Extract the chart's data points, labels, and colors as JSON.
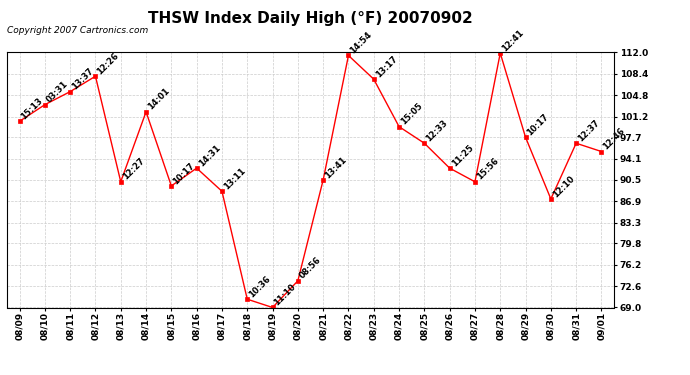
{
  "title": "THSW Index Daily High (°F) 20070902",
  "copyright": "Copyright 2007 Cartronics.com",
  "x_labels": [
    "08/09",
    "08/10",
    "08/11",
    "08/12",
    "08/13",
    "08/14",
    "08/15",
    "08/16",
    "08/17",
    "08/18",
    "08/19",
    "08/20",
    "08/21",
    "08/22",
    "08/23",
    "08/24",
    "08/25",
    "08/26",
    "08/27",
    "08/28",
    "08/29",
    "08/30",
    "08/31",
    "09/01"
  ],
  "y_values": [
    100.4,
    103.2,
    105.4,
    108.0,
    90.2,
    102.0,
    89.5,
    92.5,
    88.6,
    70.4,
    69.0,
    73.5,
    90.5,
    111.5,
    107.5,
    99.5,
    96.7,
    92.5,
    90.2,
    111.9,
    97.7,
    87.3,
    96.7,
    95.3
  ],
  "point_labels": [
    "15:13",
    "03:31",
    "13:37",
    "12:26",
    "12:27",
    "14:01",
    "10:17",
    "14:31",
    "13:11",
    "10:36",
    "11:10",
    "08:56",
    "13:41",
    "14:54",
    "13:17",
    "15:05",
    "12:33",
    "11:25",
    "15:56",
    "12:41",
    "10:17",
    "12:10",
    "12:37",
    "12:46"
  ],
  "y_ticks": [
    69.0,
    72.6,
    76.2,
    79.8,
    83.3,
    86.9,
    90.5,
    94.1,
    97.7,
    101.2,
    104.8,
    108.4,
    112.0
  ],
  "y_min": 69.0,
  "y_max": 112.0,
  "line_color": "red",
  "marker_color": "red",
  "marker_face": "red",
  "bg_color": "white",
  "grid_color": "#cccccc",
  "title_fontsize": 11,
  "label_fontsize": 6.5,
  "point_label_fontsize": 6,
  "copyright_fontsize": 6.5
}
